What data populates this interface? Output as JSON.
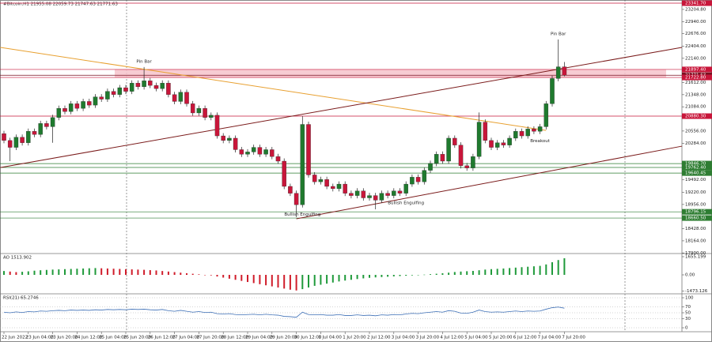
{
  "chart_data": [
    {
      "type": "candlestick",
      "title": "#Bitcoin,H1  21955.08 22059.73 21747.63 21771.63",
      "categories": [
        "22 Jun 2022",
        null,
        null,
        null,
        "23 Jun 04:00",
        null,
        null,
        null,
        "23 Jun 20:00",
        null,
        null,
        null,
        "24 Jun 12:00",
        null,
        null,
        null,
        "25 Jun 04:00",
        null,
        null,
        null,
        "25 Jun 20:00",
        null,
        null,
        null,
        "26 Jun 12:00",
        null,
        null,
        null,
        "27 Jun 04:00",
        null,
        null,
        null,
        "27 Jun 20:00",
        null,
        null,
        null,
        "28 Jun 12:00",
        null,
        null,
        null,
        "29 Jun 04:00",
        null,
        null,
        null,
        "29 Jun 20:00",
        null,
        null,
        null,
        "30 Jun 12:00",
        null,
        null,
        null,
        "1 Jul 04:00",
        null,
        null,
        null,
        "1 Jul 20:00",
        null,
        null,
        null,
        "2 Jul 12:00",
        null,
        null,
        null,
        "3 Jul 04:00",
        null,
        null,
        null,
        "3 Jul 20:00",
        null,
        null,
        null,
        "4 Jul 12:00",
        null,
        null,
        null,
        "5 Jul 04:00",
        null,
        null,
        null,
        "5 Jul 20:00",
        null,
        null,
        null,
        "6 Jul 12:00",
        null,
        null,
        null,
        "7 Jul 04:00",
        null,
        null,
        null,
        "7 Jul 20:00"
      ],
      "open": [
        20500,
        20350,
        20200,
        20420,
        20300,
        20550,
        20480,
        20720,
        20650,
        20850,
        21050,
        20980,
        21150,
        21050,
        21200,
        21120,
        21300,
        21250,
        21420,
        21350,
        21500,
        21420,
        21600,
        21520,
        21650,
        21550,
        21480,
        21600,
        21350,
        21200,
        21400,
        21150,
        20950,
        21050,
        20850,
        20900,
        20450,
        20350,
        20400,
        20150,
        20050,
        20100,
        20200,
        20050,
        20150,
        20000,
        19900,
        19350,
        19200,
        18950,
        20700,
        19600,
        19450,
        19500,
        19350,
        19300,
        19400,
        19200,
        19150,
        19250,
        19100,
        19150,
        19050,
        19200,
        19150,
        19250,
        19200,
        19400,
        19550,
        19450,
        19700,
        19850,
        20050,
        19900,
        20400,
        20250,
        19800,
        19750,
        20000,
        20750,
        20350,
        20200,
        20300,
        20250,
        20400,
        20550,
        20450,
        20600,
        20550,
        20650,
        21150,
        21700,
        21955.08
      ],
      "high": [
        20560,
        20410,
        20480,
        20480,
        20610,
        20610,
        20780,
        20780,
        20910,
        21110,
        21110,
        21210,
        21210,
        21260,
        21260,
        21360,
        21360,
        21480,
        21480,
        21560,
        21560,
        21660,
        21660,
        21950,
        21710,
        21610,
        21660,
        21660,
        21410,
        21460,
        21460,
        21210,
        21110,
        21110,
        20960,
        20960,
        20510,
        20460,
        20460,
        20210,
        20160,
        20260,
        20260,
        20210,
        20210,
        20060,
        19960,
        19410,
        19260,
        20880,
        20760,
        19660,
        19560,
        19560,
        19410,
        19460,
        19460,
        19260,
        19310,
        19310,
        19210,
        19210,
        19260,
        19260,
        19310,
        19310,
        19460,
        19610,
        19610,
        19760,
        19910,
        20110,
        20110,
        20460,
        20460,
        20310,
        19860,
        20060,
        20960,
        20810,
        20410,
        20360,
        20360,
        20460,
        20610,
        20610,
        20660,
        20660,
        20710,
        21210,
        21760,
        22550,
        22059.73
      ],
      "low": [
        20290,
        19900,
        20140,
        20240,
        20240,
        20420,
        20420,
        20590,
        20300,
        20790,
        20920,
        20920,
        20990,
        20990,
        21060,
        21060,
        21190,
        21190,
        21290,
        21290,
        21360,
        21360,
        21460,
        21460,
        21490,
        21420,
        21420,
        21290,
        21140,
        21140,
        21090,
        20890,
        20890,
        20790,
        20790,
        20390,
        20290,
        20290,
        20090,
        19990,
        19990,
        20040,
        19990,
        19990,
        19940,
        19840,
        19290,
        19140,
        18680,
        18890,
        19540,
        19390,
        19390,
        19290,
        19240,
        19240,
        19140,
        19090,
        19090,
        19040,
        19040,
        18850,
        18990,
        19090,
        19090,
        19140,
        19140,
        19340,
        19390,
        19390,
        19640,
        19790,
        19840,
        19840,
        20190,
        19740,
        19690,
        19690,
        19940,
        20290,
        20140,
        20140,
        20190,
        20190,
        20340,
        20390,
        20390,
        20490,
        20490,
        20590,
        21090,
        21640,
        21747.63
      ],
      "close": [
        20350,
        20200,
        20420,
        20300,
        20550,
        20480,
        20720,
        20650,
        20850,
        21050,
        20980,
        21150,
        21050,
        21200,
        21120,
        21300,
        21250,
        21420,
        21350,
        21500,
        21420,
        21600,
        21520,
        21650,
        21550,
        21480,
        21600,
        21350,
        21200,
        21400,
        21150,
        20950,
        21050,
        20850,
        20900,
        20450,
        20350,
        20400,
        20150,
        20050,
        20100,
        20200,
        20050,
        20150,
        20000,
        19900,
        19350,
        19200,
        18950,
        20700,
        19600,
        19450,
        19500,
        19350,
        19300,
        19400,
        19200,
        19150,
        19250,
        19100,
        19150,
        19050,
        19200,
        19150,
        19250,
        19200,
        19400,
        19550,
        19450,
        19700,
        19850,
        20050,
        19900,
        20400,
        20250,
        19800,
        19750,
        20000,
        20750,
        20350,
        20200,
        20300,
        20250,
        20400,
        20550,
        20450,
        20600,
        20550,
        20650,
        21150,
        21700,
        21955.08,
        21771.63
      ],
      "up_color": "#1f7a2e",
      "down_color": "#c8163a",
      "ylim": [
        17870,
        23410
      ],
      "yticks": [
        {
          "value": 23204.8,
          "label": "23204.80"
        },
        {
          "value": 22940,
          "label": "22940.00"
        },
        {
          "value": 22676,
          "label": "22676.00"
        },
        {
          "value": 22404,
          "label": "22404.00"
        },
        {
          "value": 22140,
          "label": "22140.00"
        },
        {
          "value": 21612,
          "label": "21612.00"
        },
        {
          "value": 21348,
          "label": "21348.00"
        },
        {
          "value": 21084,
          "label": "21084.00"
        },
        {
          "value": 20556,
          "label": "20556.00"
        },
        {
          "value": 20284,
          "label": "20284.00"
        },
        {
          "value": 19492,
          "label": "19492.00"
        },
        {
          "value": 19220,
          "label": "19220.00"
        },
        {
          "value": 18956,
          "label": "18956.00"
        },
        {
          "value": 18428,
          "label": "18428.00"
        },
        {
          "value": 18164,
          "label": "18164.00"
        },
        {
          "value": 17900,
          "label": "17900.00"
        }
      ],
      "levels": [
        {
          "value": 23341.7,
          "label": "23341.70",
          "color": "#c8163a"
        },
        {
          "value": 21897.4,
          "label": "21897.40",
          "color": "#c8163a"
        },
        {
          "value": 21771.63,
          "label": "21771.63",
          "color": "#7a1020"
        },
        {
          "value": 21722.8,
          "label": "21722.80",
          "color": "#c8163a"
        },
        {
          "value": 20880.3,
          "label": "20880.30",
          "color": "#c8163a"
        },
        {
          "value": 19846.7,
          "label": "19846.70",
          "color": "#2e7d32"
        },
        {
          "value": 19762.4,
          "label": "19762.40",
          "color": "#2e7d32"
        },
        {
          "value": 19640.45,
          "label": "19640.45",
          "color": "#2e7d32"
        },
        {
          "value": 18796.15,
          "label": "18796.15",
          "color": "#2e7d32"
        },
        {
          "value": 18660.5,
          "label": "18660.50",
          "color": "#2e7d32"
        }
      ],
      "zone": {
        "low": 21722.8,
        "high": 21897.4,
        "color": "#f6c3cb"
      },
      "trendlines": [
        {
          "start": [
            -0.6,
            22377
          ],
          "end": [
            89,
            20570
          ],
          "color": "#e8a030"
        },
        {
          "start": [
            -0.6,
            19761
          ],
          "end": [
            111.3,
            22377
          ],
          "color": "#7a1a1a"
        },
        {
          "start": [
            48,
            18643
          ],
          "end": [
            111.3,
            20226
          ],
          "color": "#7a1a1a"
        }
      ],
      "annotations": [
        {
          "text": "Pin Bar",
          "index": 23,
          "side": "above"
        },
        {
          "text": "Pin Bar",
          "index": 91,
          "side": "above"
        },
        {
          "text": "Breakout",
          "index": 88,
          "side": "below"
        },
        {
          "text": "Bullish Engulfing",
          "index": 49,
          "side": "below"
        },
        {
          "text": "Bullish Engulfing",
          "index": 66,
          "side": "below"
        }
      ]
    },
    {
      "type": "bar",
      "title": "AO 1513.902",
      "values": [
        350,
        300,
        250,
        280,
        320,
        380,
        420,
        450,
        480,
        500,
        520,
        540,
        560,
        580,
        600,
        620,
        600,
        580,
        560,
        540,
        520,
        500,
        480,
        460,
        430,
        400,
        350,
        300,
        250,
        200,
        150,
        100,
        50,
        0,
        -50,
        -150,
        -250,
        -350,
        -450,
        -550,
        -650,
        -750,
        -850,
        -950,
        -1050,
        -1150,
        -1250,
        -1350,
        -1420,
        -1300,
        -1150,
        -1000,
        -900,
        -800,
        -700,
        -600,
        -520,
        -450,
        -380,
        -320,
        -270,
        -230,
        -200,
        -170,
        -140,
        -110,
        -80,
        -50,
        -20,
        20,
        60,
        100,
        150,
        200,
        260,
        300,
        330,
        360,
        420,
        480,
        520,
        550,
        580,
        620,
        660,
        700,
        740,
        780,
        820,
        950,
        1150,
        1350,
        1513.902
      ],
      "up_color": "#1f9a3a",
      "down_color": "#d01c2a",
      "ylim": [
        -1583,
        1870
      ],
      "yticks": [
        {
          "value": 1655.199,
          "label": "1655.199"
        },
        {
          "value": 0,
          "label": "0.00"
        },
        {
          "value": -1473.126,
          "label": "-1473.126"
        }
      ]
    },
    {
      "type": "line",
      "title": "RSI(21) 65.2746",
      "values": [
        52,
        50,
        53,
        51,
        54,
        53,
        56,
        55,
        57,
        58,
        57,
        59,
        58,
        59,
        58,
        60,
        59,
        61,
        60,
        61,
        60,
        62,
        61,
        62,
        60,
        59,
        61,
        57,
        55,
        58,
        55,
        52,
        54,
        51,
        52,
        47,
        46,
        47,
        44,
        43,
        44,
        45,
        43,
        45,
        43,
        42,
        38,
        37,
        35,
        52,
        44,
        43,
        44,
        42,
        42,
        44,
        41,
        41,
        43,
        41,
        42,
        40,
        43,
        42,
        44,
        43,
        46,
        48,
        47,
        50,
        52,
        54,
        52,
        57,
        55,
        49,
        48,
        52,
        59,
        54,
        52,
        53,
        52,
        54,
        56,
        54,
        56,
        55,
        56,
        62,
        67,
        69,
        65.2746
      ],
      "color": "#3d6fb6",
      "ylim": [
        0,
        100
      ],
      "yticks": [
        100,
        70,
        50,
        30,
        0
      ],
      "grid": true
    }
  ]
}
